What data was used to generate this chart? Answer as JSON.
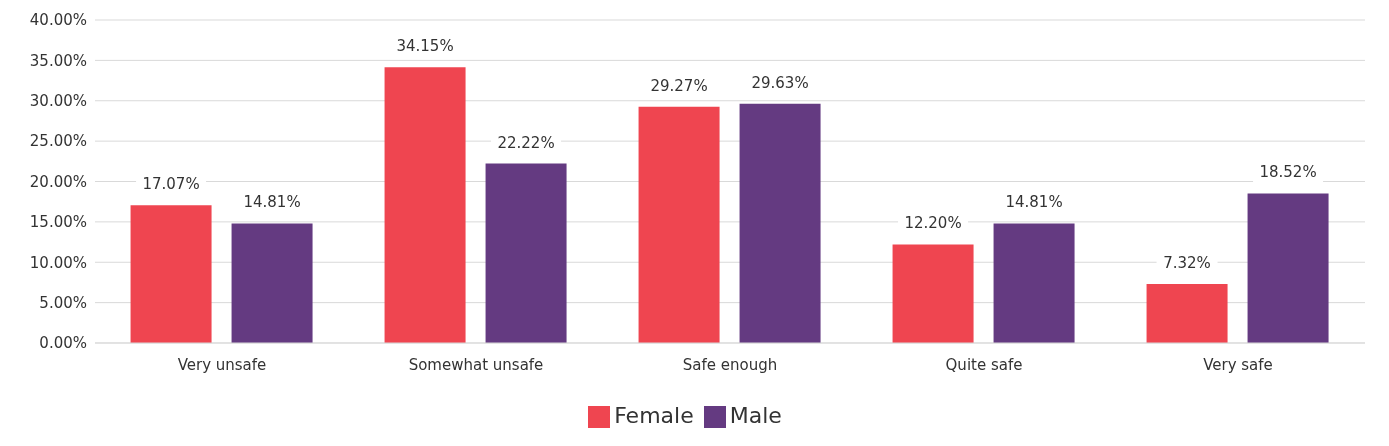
{
  "chart_data": {
    "type": "bar",
    "categories": [
      "Very unsafe",
      "Somewhat unsafe",
      "Safe enough",
      "Quite safe",
      "Very safe"
    ],
    "series": [
      {
        "name": "Female",
        "color": "#ef4550",
        "values": [
          17.07,
          34.15,
          29.27,
          12.2,
          7.32
        ],
        "value_labels": [
          "17.07%",
          "34.15%",
          "29.27%",
          "12.20%",
          "7.32%"
        ]
      },
      {
        "name": "Male",
        "color": "#643a81",
        "values": [
          14.81,
          22.22,
          29.63,
          14.81,
          18.52
        ],
        "value_labels": [
          "14.81%",
          "22.22%",
          "29.63%",
          "14.81%",
          "18.52%"
        ]
      }
    ],
    "ylim": [
      0,
      40
    ],
    "yticks": [
      {
        "value": 0,
        "label": "0.00%"
      },
      {
        "value": 5,
        "label": "5.00%"
      },
      {
        "value": 10,
        "label": "10.00%"
      },
      {
        "value": 15,
        "label": "15.00%"
      },
      {
        "value": 20,
        "label": "20.00%"
      },
      {
        "value": 25,
        "label": "25.00%"
      },
      {
        "value": 30,
        "label": "30.00%"
      },
      {
        "value": 35,
        "label": "35.00%"
      },
      {
        "value": 40,
        "label": "40.00%"
      }
    ],
    "grid": "y",
    "legend": "bottom"
  }
}
